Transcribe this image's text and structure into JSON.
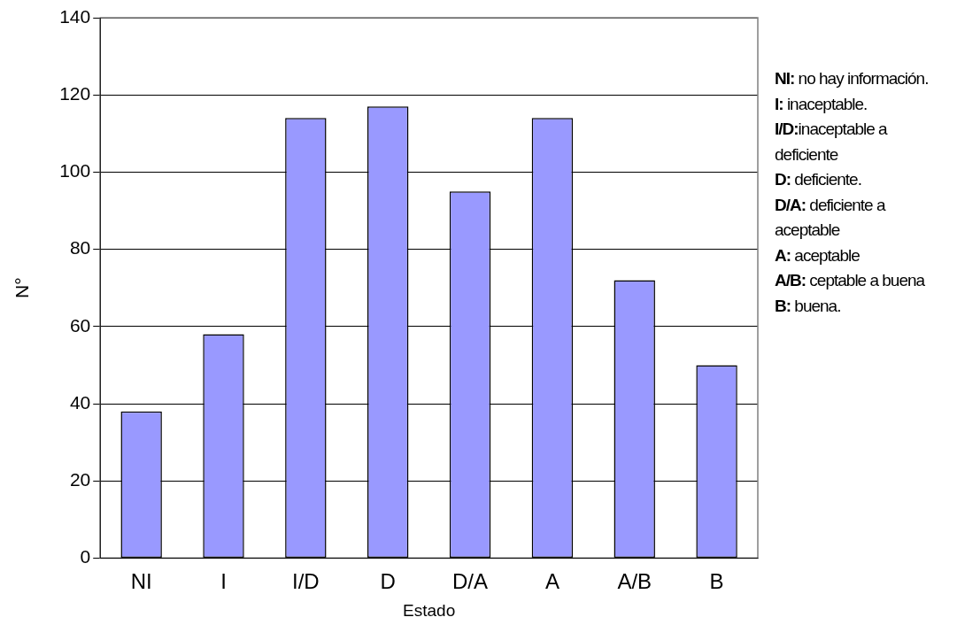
{
  "chart_data": {
    "type": "bar",
    "xlabel": "Estado",
    "ylabel": "N°",
    "categories": [
      "NI",
      "I",
      "I/D",
      "D",
      "D/A",
      "A",
      "A/B",
      "B"
    ],
    "values": [
      38,
      58,
      114,
      117,
      95,
      114,
      72,
      50
    ],
    "color": "#9999ff",
    "ylim": [
      0,
      140
    ],
    "yticks": [
      0,
      20,
      40,
      60,
      80,
      100,
      120,
      140
    ],
    "grid": "y",
    "legend": false,
    "annotations": [
      "NI: no hay información.",
      "I: inaceptable.",
      "I/D:inaceptable a deficiente",
      "D: deficiente.",
      "D/A: deficiente a aceptable",
      "A: aceptable",
      "A/B: ceptable a buena",
      "B: buena."
    ]
  }
}
